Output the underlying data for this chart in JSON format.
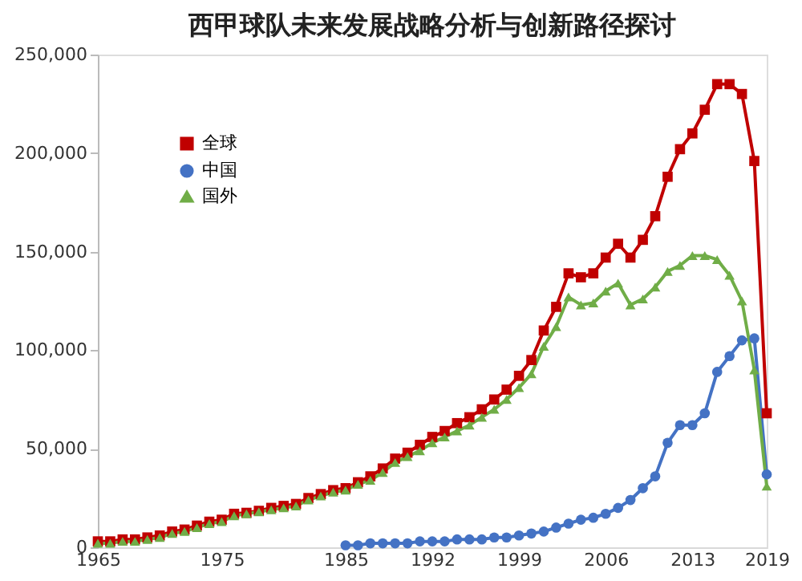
{
  "chart_data": {
    "type": "line",
    "title": "西甲球队未来发展战略分析与创新路径探讨",
    "x": [
      1965,
      1966,
      1967,
      1968,
      1969,
      1970,
      1971,
      1972,
      1973,
      1974,
      1975,
      1976,
      1977,
      1978,
      1979,
      1980,
      1981,
      1982,
      1983,
      1984,
      1985,
      1986,
      1987,
      1988,
      1989,
      1990,
      1991,
      1992,
      1993,
      1994,
      1995,
      1996,
      1997,
      1998,
      1999,
      2000,
      2001,
      2002,
      2003,
      2004,
      2005,
      2006,
      2007,
      2008,
      2009,
      2010,
      2011,
      2012,
      2013,
      2014,
      2015,
      2016,
      2017,
      2018,
      2019
    ],
    "series": [
      {
        "name": "全球",
        "color": "#c00000",
        "marker": "square",
        "values": [
          3000,
          3000,
          4000,
          4000,
          5000,
          6000,
          8000,
          9000,
          11000,
          13000,
          14000,
          17000,
          17500,
          18500,
          20000,
          21000,
          22000,
          25000,
          27000,
          29000,
          30000,
          33000,
          36000,
          40000,
          45000,
          48000,
          52000,
          56000,
          59000,
          63000,
          66000,
          70000,
          75000,
          80000,
          87000,
          95000,
          110000,
          122000,
          139000,
          137000,
          139000,
          147000,
          154000,
          147000,
          156000,
          168000,
          188000,
          202000,
          210000,
          222000,
          235000,
          235000,
          230000,
          196000,
          68000
        ]
      },
      {
        "name": "中国",
        "color": "#4472c4",
        "marker": "circle",
        "x": [
          1985,
          1986,
          1987,
          1988,
          1989,
          1990,
          1991,
          1992,
          1993,
          1994,
          1995,
          1996,
          1997,
          1998,
          1999,
          2000,
          2001,
          2002,
          2003,
          2004,
          2005,
          2006,
          2007,
          2008,
          2009,
          2010,
          2011,
          2012,
          2013,
          2014,
          2015,
          2016,
          2017,
          2018,
          2019
        ],
        "values": [
          1000,
          1000,
          2000,
          2000,
          2000,
          2000,
          3000,
          3000,
          3000,
          4000,
          4000,
          4000,
          5000,
          5000,
          6000,
          7000,
          8000,
          10000,
          12000,
          14000,
          15000,
          17000,
          20000,
          24000,
          30000,
          36000,
          53000,
          62000,
          62000,
          68000,
          89000,
          97000,
          105000,
          106000,
          37000
        ]
      },
      {
        "name": "国外",
        "color": "#70ad47",
        "marker": "triangle",
        "values": [
          2000,
          2000,
          3000,
          3000,
          4000,
          5000,
          7000,
          8000,
          10000,
          12000,
          13000,
          16000,
          17000,
          18000,
          19000,
          20000,
          21000,
          24000,
          26000,
          28000,
          29000,
          32000,
          34000,
          38000,
          43000,
          46000,
          49000,
          53000,
          56000,
          59000,
          62000,
          66000,
          70000,
          75000,
          81000,
          88000,
          102000,
          112000,
          127000,
          123000,
          124000,
          130000,
          134000,
          123000,
          126000,
          132000,
          140000,
          143000,
          148000,
          148000,
          146000,
          138000,
          125000,
          90000,
          31000
        ]
      }
    ],
    "xlim": [
      1965,
      2019
    ],
    "xticks": [
      1965,
      1975,
      1985,
      1992,
      1999,
      2006,
      2013,
      2019
    ],
    "ylim": [
      0,
      250000
    ],
    "yticks": [
      0,
      {
        "value": 50000,
        "label": "50,000"
      },
      {
        "value": 100000,
        "label": "100,000"
      },
      {
        "value": 150000,
        "label": "150,000"
      },
      {
        "value": 200000,
        "label": "200,000"
      },
      {
        "value": 250000,
        "label": "250,000"
      }
    ],
    "grid": false,
    "legend": "top left",
    "line_style": "solid"
  }
}
